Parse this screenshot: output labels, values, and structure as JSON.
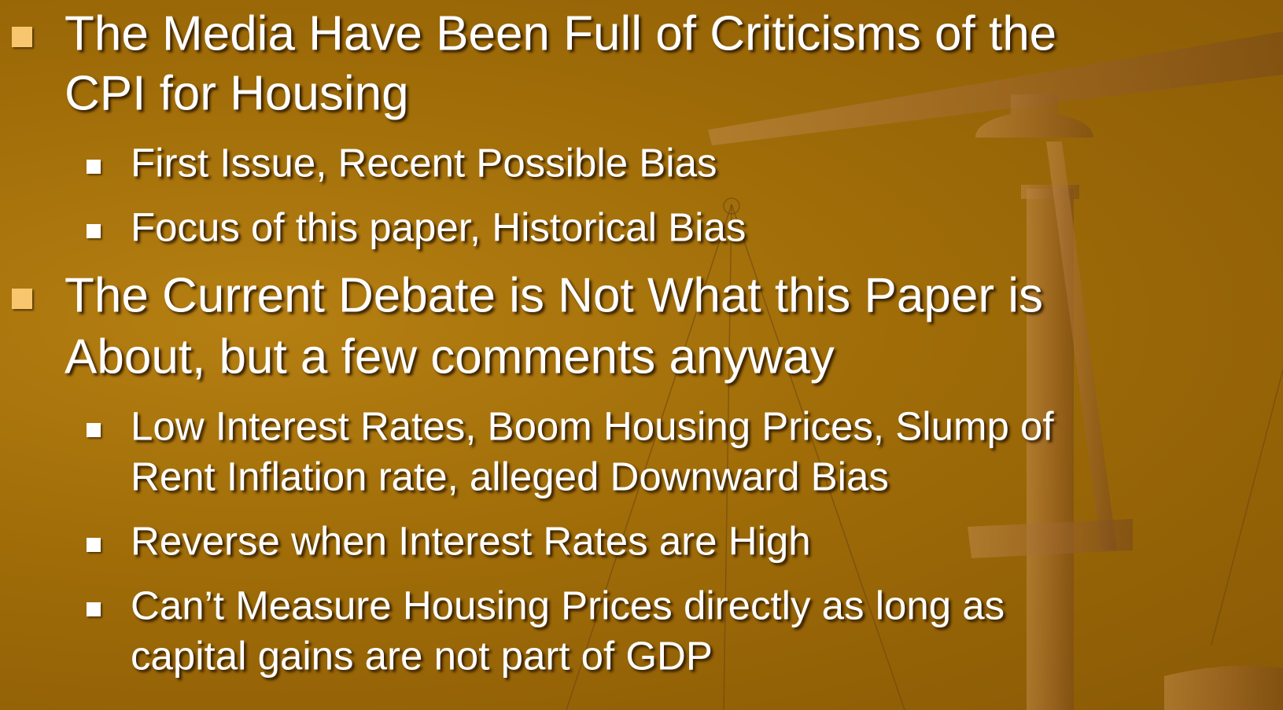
{
  "bullets": [
    {
      "lines": [
        "The Media Have Been Full of Criticisms of the",
        "CPI for Housing"
      ],
      "sub": [
        {
          "lines": [
            "First Issue, Recent Possible Bias"
          ]
        },
        {
          "lines": [
            "Focus of this paper, Historical Bias"
          ]
        }
      ]
    },
    {
      "lines": [
        "The Current Debate is Not What this Paper is",
        "About, but a few comments anyway"
      ],
      "sub": [
        {
          "lines": [
            "Low Interest Rates, Boom Housing Prices, Slump of",
            "Rent Inflation rate, alleged Downward Bias"
          ]
        },
        {
          "lines": [
            "Reverse when Interest Rates are High"
          ]
        },
        {
          "lines": [
            "Can’t Measure Housing Prices directly as long as",
            "capital gains are not part of GDP"
          ]
        }
      ]
    }
  ]
}
